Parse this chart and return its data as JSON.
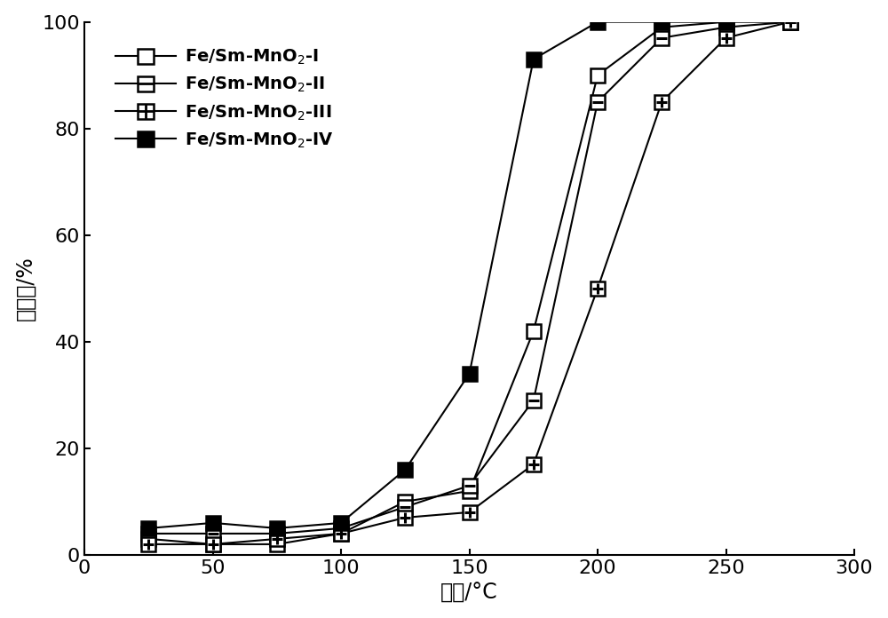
{
  "series": [
    {
      "key": "I",
      "x": [
        25,
        50,
        75,
        100,
        125,
        150,
        175,
        200,
        225,
        250,
        275
      ],
      "y": [
        3,
        2,
        2,
        4,
        10,
        12,
        42,
        90,
        99,
        100,
        100
      ],
      "markertype": "open_square"
    },
    {
      "key": "II",
      "x": [
        25,
        50,
        75,
        100,
        125,
        150,
        175,
        200,
        225,
        250,
        275
      ],
      "y": [
        4,
        4,
        4,
        5,
        9,
        13,
        29,
        85,
        97,
        99,
        100
      ],
      "markertype": "h_square"
    },
    {
      "key": "III",
      "x": [
        25,
        50,
        75,
        100,
        125,
        150,
        175,
        200,
        225,
        250,
        275
      ],
      "y": [
        2,
        2,
        3,
        4,
        7,
        8,
        17,
        50,
        85,
        97,
        100
      ],
      "markertype": "grid_square"
    },
    {
      "key": "IV",
      "x": [
        25,
        50,
        75,
        100,
        125,
        150,
        175,
        200,
        225,
        250
      ],
      "y": [
        5,
        6,
        5,
        6,
        16,
        34,
        93,
        100,
        100,
        100
      ],
      "markertype": "filled_square"
    }
  ],
  "xlim": [
    0,
    300
  ],
  "ylim": [
    0,
    100
  ],
  "xticks": [
    0,
    50,
    100,
    150,
    200,
    250,
    300
  ],
  "yticks": [
    0,
    20,
    40,
    60,
    80,
    100
  ],
  "xlabel": "温度/°C",
  "ylabel_chars": [
    "转",
    "化",
    "率",
    "%"
  ],
  "ylabel_top": "转化率",
  "ylabel_bottom": "%",
  "background_color": "#ffffff",
  "marker_size": 12,
  "linewidth": 1.5,
  "tick_fontsize": 16,
  "label_fontsize": 17,
  "legend_fontsize": 14,
  "legend_labels": [
    "Fe/Sm-MnO$_2$-I",
    "Fe/Sm-MnO$_2$-II",
    "Fe/Sm-MnO$_2$-III",
    "Fe/Sm-MnO$_2$-IV"
  ]
}
